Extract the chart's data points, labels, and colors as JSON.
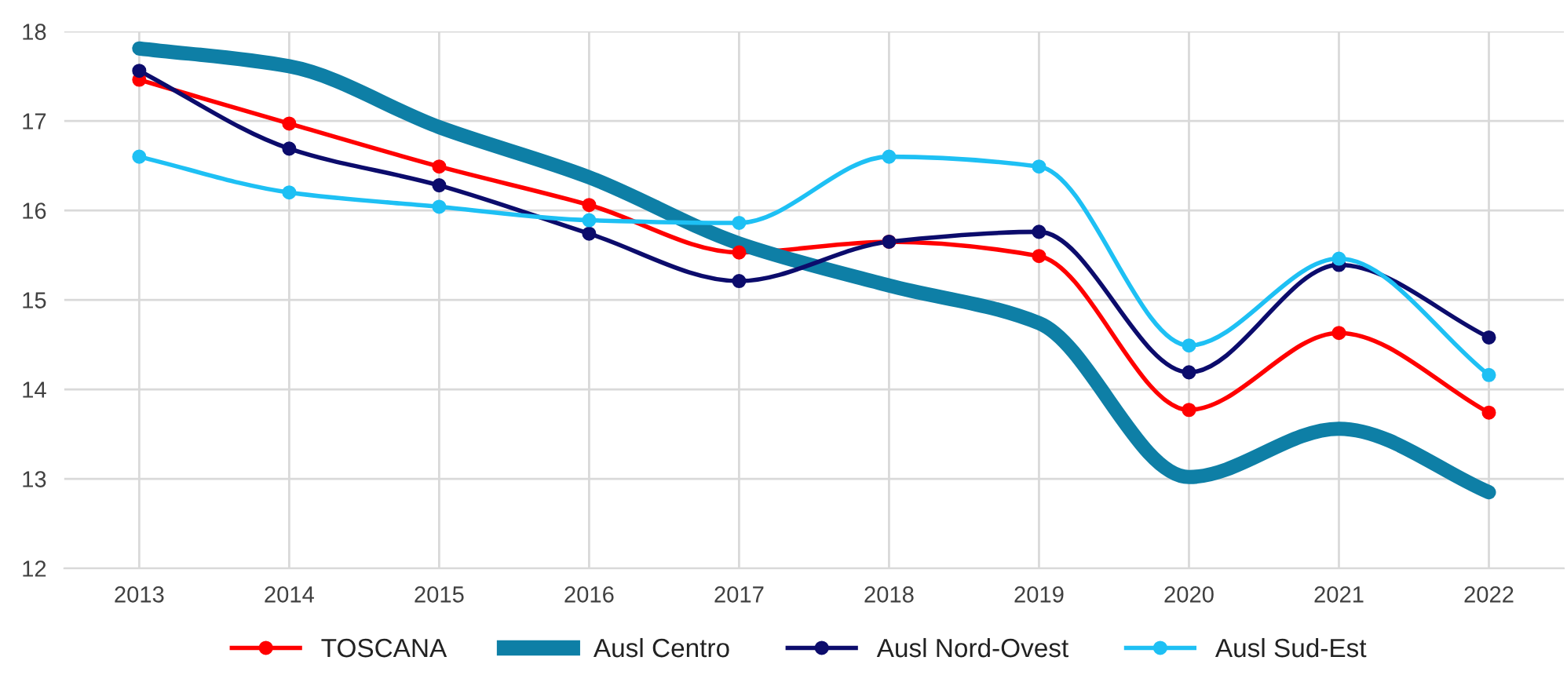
{
  "chart_data": {
    "type": "line",
    "categories": [
      "2013",
      "2014",
      "2015",
      "2016",
      "2017",
      "2018",
      "2019",
      "2020",
      "2021",
      "2022"
    ],
    "ylim": [
      12,
      18
    ],
    "yticks": [
      12,
      13,
      14,
      15,
      16,
      17,
      18
    ],
    "grid": true,
    "legend": "bottom",
    "series": [
      {
        "name": "TOSCANA",
        "color": "#ff0000",
        "marker": "circle",
        "values": [
          17.46,
          16.97,
          16.49,
          16.06,
          15.53,
          15.65,
          15.49,
          13.77,
          14.63,
          13.74
        ]
      },
      {
        "name": "Ausl Centro",
        "color": "#0e7fa6",
        "marker": "none",
        "values": [
          17.81,
          17.61,
          16.93,
          16.37,
          15.63,
          15.16,
          14.74,
          13.02,
          13.56,
          12.85
        ]
      },
      {
        "name": "Ausl Nord-Ovest",
        "color": "#0c0c6c",
        "marker": "circle",
        "values": [
          17.56,
          16.69,
          16.28,
          15.74,
          15.21,
          15.65,
          15.76,
          14.19,
          15.39,
          14.58
        ]
      },
      {
        "name": "Ausl Sud-Est",
        "color": "#1ec0f4",
        "marker": "circle",
        "values": [
          16.6,
          16.2,
          16.04,
          15.89,
          15.86,
          16.6,
          16.49,
          14.49,
          15.46,
          14.16
        ]
      }
    ]
  }
}
